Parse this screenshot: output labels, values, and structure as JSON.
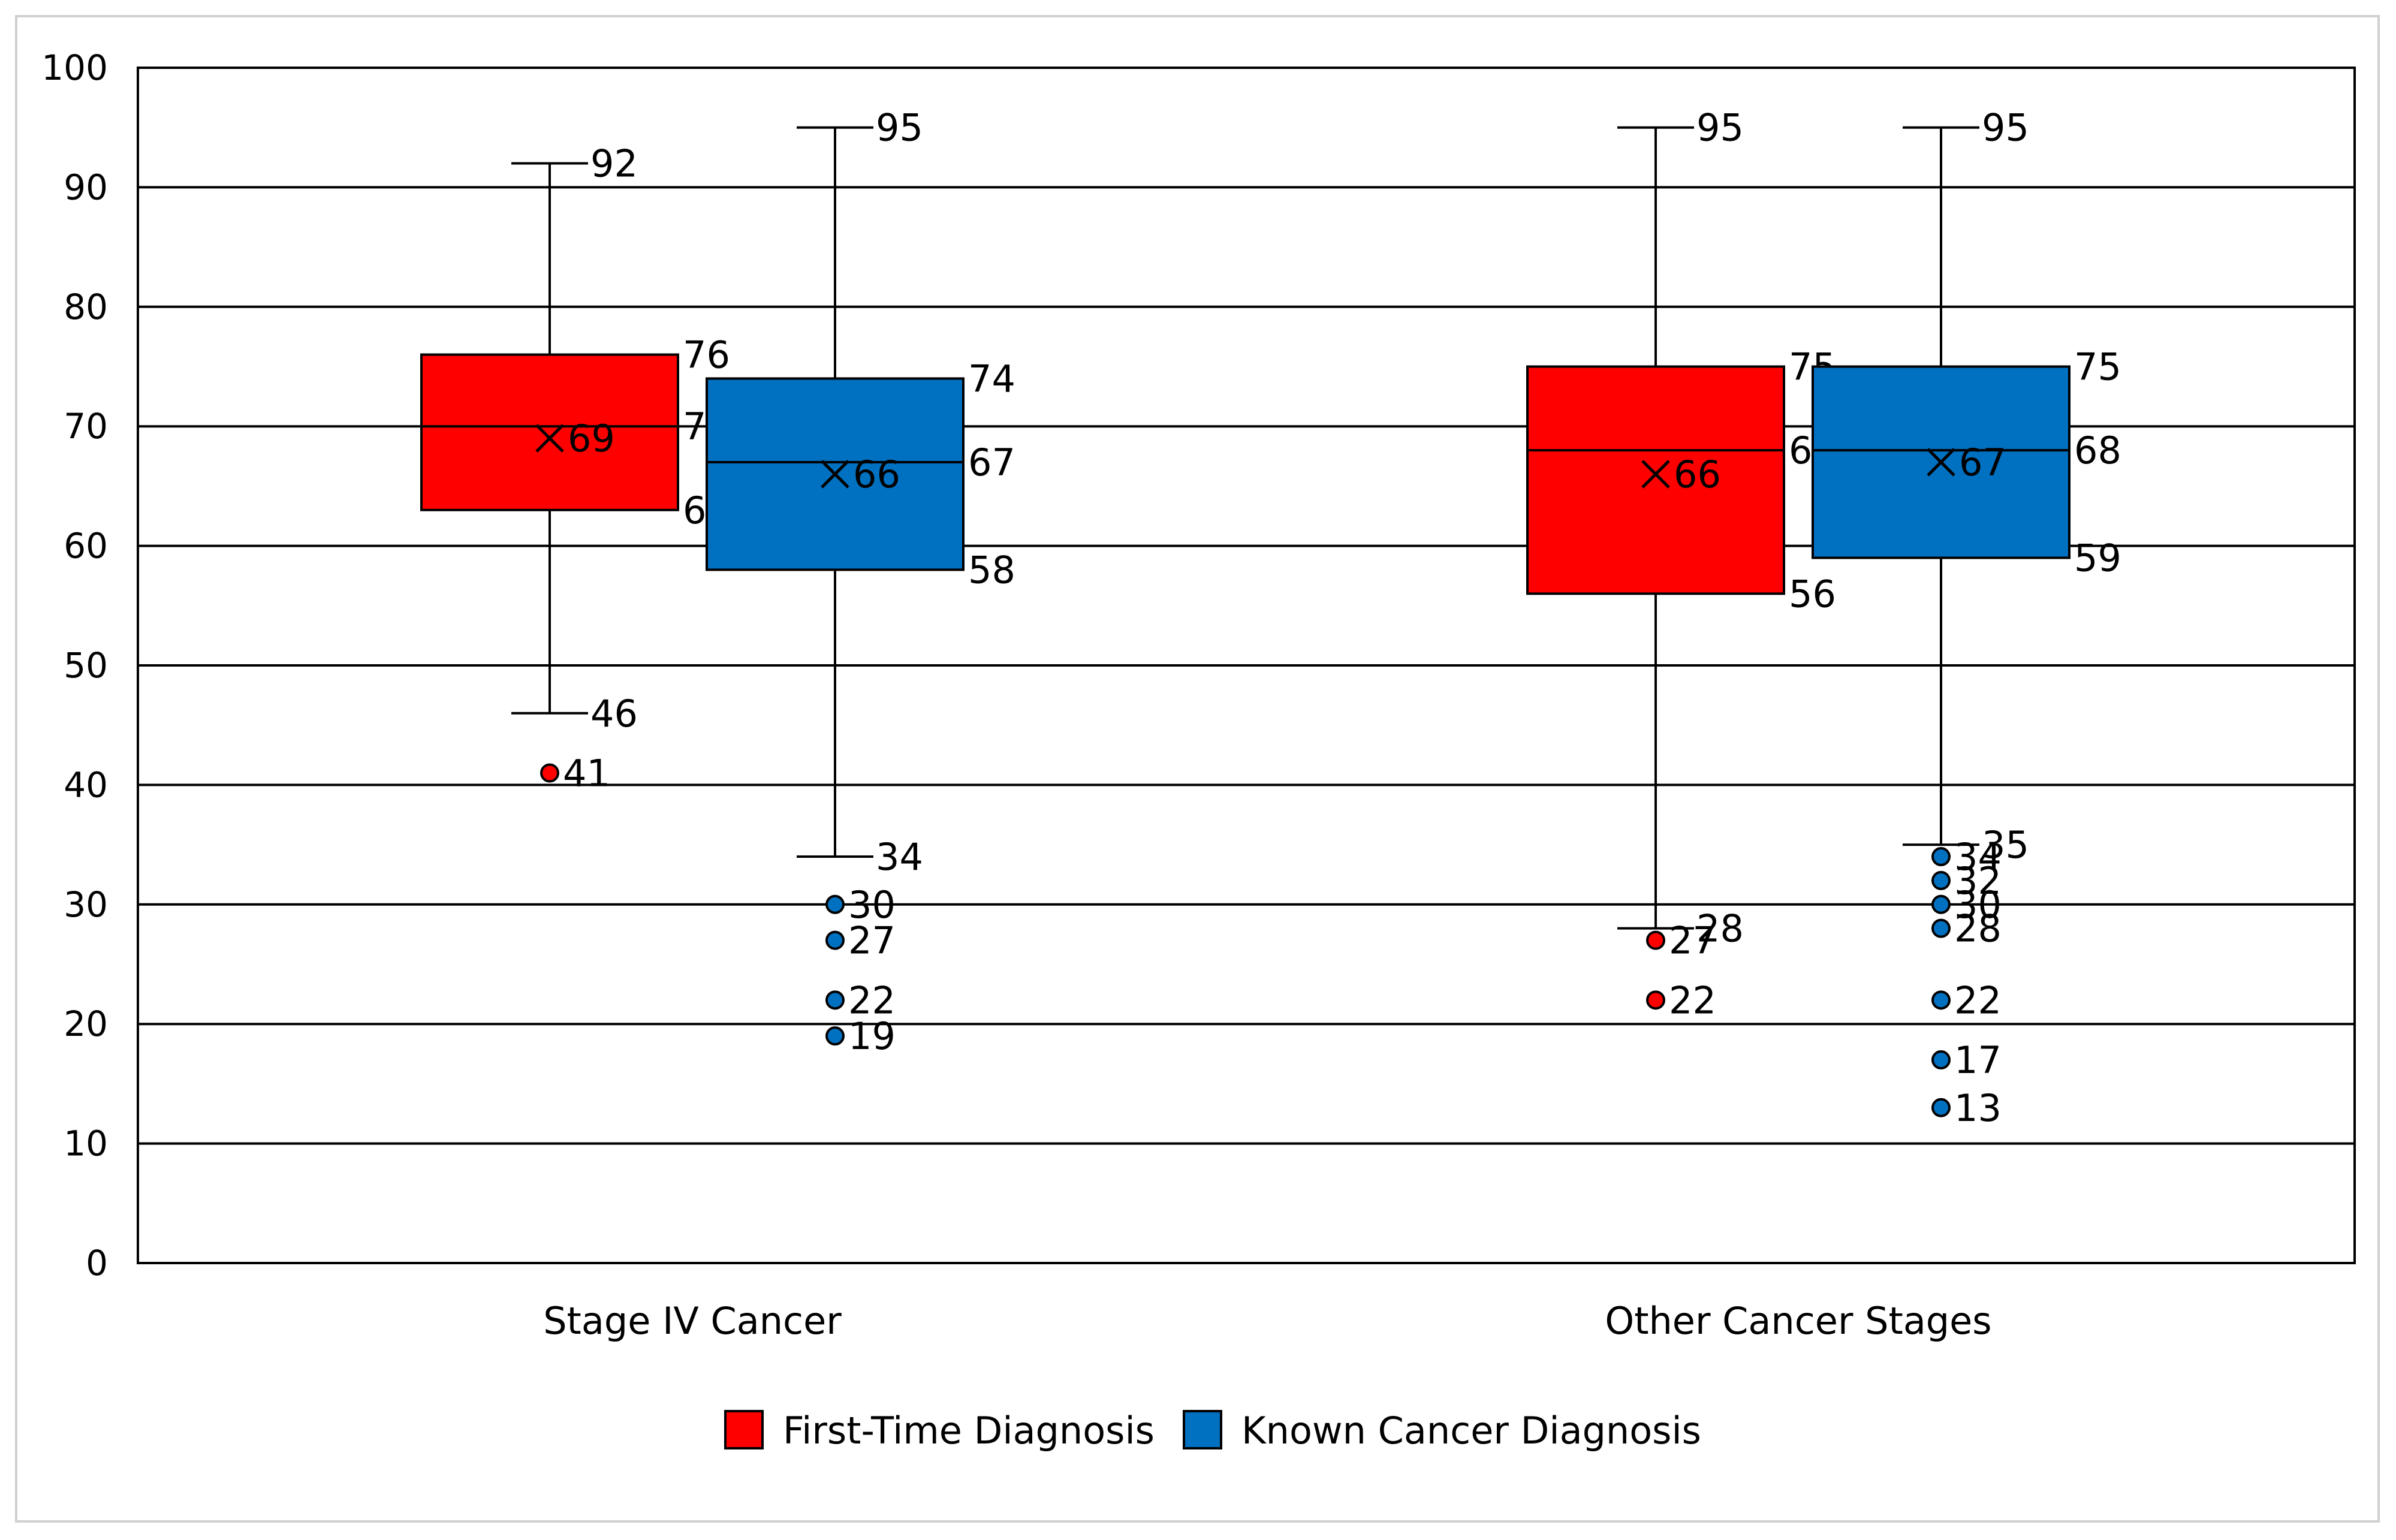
{
  "chart_data": {
    "type": "box",
    "categories": [
      "Stage IV Cancer",
      "Other Cancer Stages"
    ],
    "ylim": [
      0,
      100
    ],
    "yticks": [
      0,
      10,
      20,
      30,
      40,
      50,
      60,
      70,
      80,
      90,
      100
    ],
    "grid": true,
    "legend_position": "bottom",
    "series": [
      {
        "name": "First-Time Diagnosis",
        "color": "#ff0000",
        "boxes": [
          {
            "category": "Stage IV Cancer",
            "min": 46,
            "q1": 63,
            "median": 70,
            "q3": 76,
            "max": 92,
            "mean": 69,
            "outliers": [
              41
            ]
          },
          {
            "category": "Other Cancer Stages",
            "min": 28,
            "q1": 56,
            "median": 68,
            "q3": 75,
            "max": 95,
            "mean": 66,
            "outliers": [
              27,
              22
            ]
          }
        ]
      },
      {
        "name": "Known Cancer Diagnosis",
        "color": "#0070c0",
        "boxes": [
          {
            "category": "Stage IV Cancer",
            "min": 34,
            "q1": 58,
            "median": 67,
            "q3": 74,
            "max": 95,
            "mean": 66,
            "outliers": [
              30,
              27,
              22,
              19
            ]
          },
          {
            "category": "Other Cancer Stages",
            "min": 35,
            "q1": 59,
            "median": 68,
            "q3": 75,
            "max": 95,
            "mean": 67,
            "outliers": [
              34,
              32,
              30,
              28,
              22,
              17,
              13
            ]
          }
        ]
      }
    ]
  }
}
